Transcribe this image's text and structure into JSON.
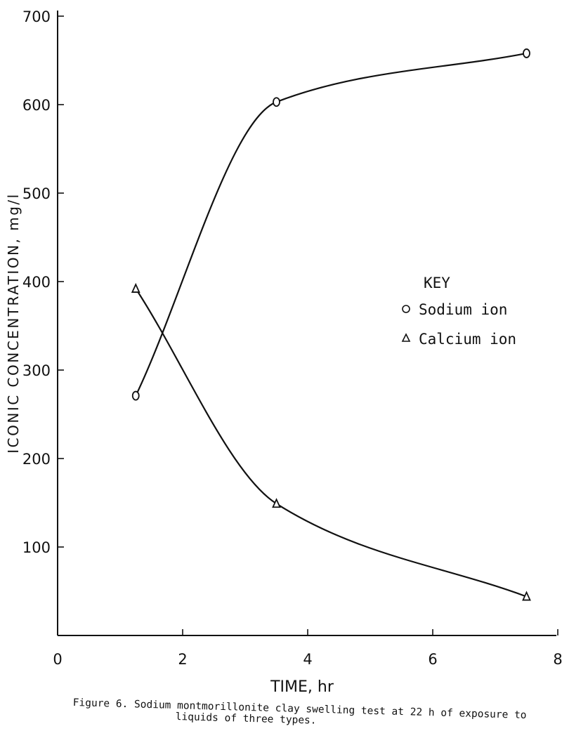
{
  "chart_data": {
    "type": "line",
    "title": "",
    "xlabel": "TIME, hr",
    "ylabel": "ICONIC CONCENTRATION, mg/l",
    "xlim": [
      0,
      8
    ],
    "ylim": [
      0,
      700
    ],
    "x_ticks": [
      0,
      2,
      4,
      6,
      8
    ],
    "y_ticks": [
      100,
      200,
      300,
      400,
      500,
      600,
      700
    ],
    "grid": false,
    "legend": {
      "title": "KEY",
      "placement": "center-right",
      "entries": [
        {
          "marker": "o",
          "label": "Sodium ion"
        },
        {
          "marker": "Δ",
          "label": "Calcium ion"
        }
      ]
    },
    "series": [
      {
        "name": "Sodium ion",
        "marker": "circle",
        "x": [
          1.25,
          3.5,
          7.5
        ],
        "y": [
          271,
          603,
          658
        ]
      },
      {
        "name": "Calcium ion",
        "marker": "triangle",
        "x": [
          1.25,
          3.5,
          7.5
        ],
        "y": [
          392,
          149,
          44
        ]
      }
    ]
  },
  "caption": {
    "line1": "Figure 6.  Sodium montmorillonite clay swelling test at 22 h of exposure to",
    "line2": "liquids of three types."
  }
}
